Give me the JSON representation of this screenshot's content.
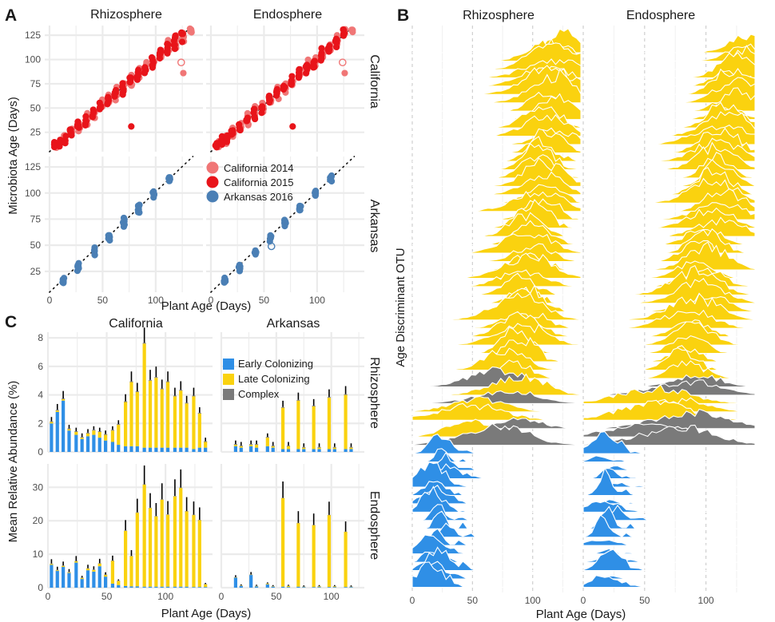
{
  "panel_labels": {
    "a": "A",
    "b": "B",
    "c": "C"
  },
  "colors": {
    "california_2014": "#f07676",
    "california_2015": "#e8141a",
    "arkansas_2016": "#4a7fb5",
    "early": "#2f8fe6",
    "late": "#fad20f",
    "complex": "#7a7a7a",
    "grid": "#ebebeb"
  },
  "chart_data": [
    {
      "id": "panel_a",
      "type": "scatter",
      "facet_cols": [
        "Rhizosphere",
        "Endosphere"
      ],
      "facet_rows": [
        "California",
        "Arkansas"
      ],
      "xlabel": "Plant Age (Days)",
      "ylabel": "Microbiota Age (Days)",
      "xlim": [
        0,
        140
      ],
      "ylim": [
        5,
        135
      ],
      "x_ticks": [
        0,
        50,
        100
      ],
      "y_ticks": [
        25,
        50,
        75,
        100,
        125
      ],
      "reference_line": "1:1 dotted",
      "legend": [
        "California 2014",
        "California 2015",
        "Arkansas 2016"
      ],
      "series": [
        {
          "name": "California 2014",
          "ages": [
            7,
            14,
            21,
            28,
            35,
            42,
            49,
            56,
            63,
            70,
            77,
            84,
            91,
            98,
            105,
            112,
            119,
            126,
            133
          ]
        },
        {
          "name": "California 2015",
          "ages": [
            5,
            10,
            15,
            20,
            27,
            34,
            41,
            48,
            55,
            62,
            69,
            76,
            83,
            90,
            97,
            104,
            111,
            118,
            125
          ]
        },
        {
          "name": "Arkansas 2016",
          "ages": [
            13,
            27,
            42,
            56,
            70,
            84,
            98,
            113
          ]
        }
      ]
    },
    {
      "id": "panel_b",
      "type": "area",
      "description_title": "ridgeline",
      "facet_cols": [
        "Rhizosphere",
        "Endosphere"
      ],
      "xlabel": "Plant Age (Days)",
      "ylabel": "Age Discriminant OTU",
      "xlim": [
        0,
        140
      ],
      "x_ticks": [
        0,
        50,
        100
      ],
      "groups": [
        {
          "name": "Late Colonizing",
          "otu_count": 40
        },
        {
          "name": "Complex",
          "otu_count": 8
        },
        {
          "name": "Early Colonizing",
          "otu_count": 17
        }
      ]
    },
    {
      "id": "panel_c",
      "type": "bar",
      "facet_cols": [
        "California",
        "Arkansas"
      ],
      "facet_rows": [
        "Rhizosphere",
        "Endosphere"
      ],
      "xlabel": "Plant Age (Days)",
      "ylabel": "Mean Relative Abundance (%)",
      "xlim": [
        0,
        140
      ],
      "x_ticks": [
        0,
        50,
        100
      ],
      "legend": [
        "Early Colonizing",
        "Late Colonizing",
        "Complex"
      ],
      "panels": [
        {
          "row": "Rhizosphere",
          "col": "California",
          "ylim": [
            0,
            8.4
          ],
          "y_ticks": [
            0,
            2,
            4,
            6,
            8
          ],
          "x": [
            3,
            8,
            13,
            18,
            24,
            29,
            34,
            39,
            44,
            49,
            55,
            60,
            66,
            71,
            76,
            82,
            87,
            92,
            97,
            102,
            108,
            113,
            118,
            124,
            129,
            134
          ],
          "early": [
            2.0,
            2.8,
            3.6,
            1.5,
            1.2,
            0.9,
            1.1,
            1.2,
            1.0,
            0.8,
            0.7,
            0.5,
            0.4,
            0.4,
            0.4,
            0.3,
            0.3,
            0.3,
            0.3,
            0.3,
            0.3,
            0.3,
            0.3,
            0.2,
            0.3,
            0.3
          ],
          "late": [
            0.1,
            0.1,
            0.1,
            0.1,
            0.2,
            0.1,
            0.2,
            0.3,
            0.4,
            0.4,
            0.8,
            1.4,
            3.1,
            4.5,
            3.8,
            7.3,
            4.7,
            4.9,
            4.1,
            4.6,
            3.6,
            4.0,
            3.1,
            3.7,
            2.4,
            0.4
          ],
          "complex": [
            0.05,
            0.05,
            0.05,
            0.05,
            0.05,
            0.05,
            0.05,
            0.05,
            0.05,
            0.05,
            0.05,
            0.05,
            0.05,
            0.05,
            0.05,
            0.05,
            0.05,
            0.05,
            0.05,
            0.05,
            0.05,
            0.05,
            0.05,
            0.05,
            0.05,
            0.05
          ]
        },
        {
          "row": "Rhizosphere",
          "col": "Arkansas",
          "ylim": [
            0,
            8.4
          ],
          "y_ticks": [
            0,
            2,
            4,
            6,
            8
          ],
          "x": [
            13,
            18,
            27,
            32,
            42,
            47,
            56,
            61,
            70,
            75,
            84,
            89,
            98,
            103,
            113,
            118
          ],
          "early": [
            0.4,
            0.3,
            0.4,
            0.3,
            0.4,
            0.3,
            0.2,
            0.2,
            0.2,
            0.2,
            0.2,
            0.2,
            0.2,
            0.2,
            0.2,
            0.2
          ],
          "late": [
            0.1,
            0.1,
            0.1,
            0.2,
            0.6,
            0.1,
            2.9,
            0.2,
            3.4,
            0.1,
            3.0,
            0.1,
            3.6,
            0.1,
            3.8,
            0.1
          ],
          "complex": [
            0.05,
            0.05,
            0.05,
            0.05,
            0.05,
            0.05,
            0.05,
            0.05,
            0.05,
            0.05,
            0.05,
            0.05,
            0.05,
            0.05,
            0.05,
            0.05
          ]
        },
        {
          "row": "Endosphere",
          "col": "California",
          "ylim": [
            0,
            37
          ],
          "y_ticks": [
            0,
            10,
            20,
            30
          ],
          "x": [
            3,
            8,
            13,
            18,
            24,
            29,
            34,
            39,
            44,
            49,
            55,
            60,
            66,
            71,
            76,
            82,
            87,
            92,
            97,
            102,
            108,
            113,
            118,
            124,
            129,
            134
          ],
          "early": [
            6.8,
            5.0,
            6.2,
            4.4,
            7.5,
            2.6,
            5.2,
            4.8,
            6.4,
            3.3,
            1.2,
            0.8,
            0.5,
            0.4,
            0.4,
            0.3,
            0.3,
            0.3,
            0.3,
            0.3,
            0.3,
            0.3,
            0.3,
            0.2,
            0.2,
            0.2
          ],
          "late": [
            0.3,
            0.2,
            0.3,
            0.2,
            0.4,
            0.3,
            0.5,
            0.5,
            0.8,
            0.5,
            6.8,
            1.2,
            16.5,
            9.0,
            22.0,
            30.5,
            23.5,
            21.0,
            26.0,
            21.5,
            27.0,
            29.5,
            22.5,
            21.5,
            20.0,
            0.8
          ],
          "complex": [
            0.1,
            0.1,
            0.1,
            0.1,
            0.1,
            0.1,
            0.1,
            0.1,
            0.1,
            0.1,
            0.1,
            0.1,
            0.1,
            0.1,
            0.1,
            0.1,
            0.1,
            0.1,
            0.1,
            0.1,
            0.1,
            0.1,
            0.1,
            0.1,
            0.1,
            0.1
          ]
        },
        {
          "row": "Endosphere",
          "col": "Arkansas",
          "ylim": [
            0,
            37
          ],
          "y_ticks": [
            0,
            10,
            20,
            30
          ],
          "x": [
            13,
            18,
            27,
            32,
            42,
            47,
            56,
            61,
            70,
            75,
            84,
            89,
            98,
            103,
            113,
            118
          ],
          "early": [
            3.0,
            0.5,
            3.8,
            0.4,
            1.0,
            0.3,
            0.3,
            0.2,
            0.3,
            0.2,
            0.2,
            0.2,
            0.2,
            0.2,
            0.2,
            0.2
          ],
          "late": [
            0.1,
            0.1,
            0.1,
            0.1,
            0.2,
            0.1,
            26.5,
            0.3,
            19.0,
            0.1,
            18.5,
            0.2,
            21.5,
            0.2,
            16.5,
            0.1
          ],
          "complex": [
            0.05,
            0.05,
            0.05,
            0.05,
            0.05,
            0.05,
            0.05,
            0.05,
            0.05,
            0.05,
            0.05,
            0.05,
            0.05,
            0.05,
            0.05,
            0.05
          ]
        }
      ]
    }
  ]
}
